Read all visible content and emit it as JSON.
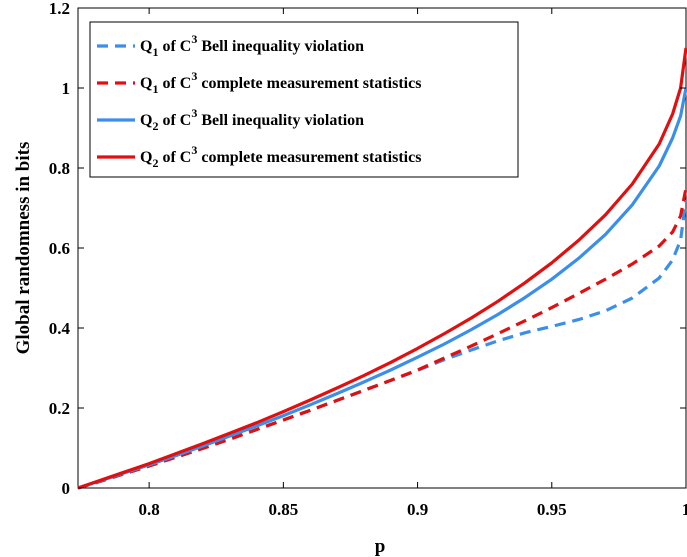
{
  "chart_data": {
    "type": "line",
    "xlabel": "p",
    "ylabel": "Global randomness in bits",
    "xlim": [
      0.7735,
      1.0
    ],
    "ylim": [
      0,
      1.2
    ],
    "x_ticks": [
      0.8,
      0.85,
      0.9,
      0.95,
      1
    ],
    "x_tick_labels": [
      "0.8",
      "0.85",
      "0.9",
      "0.95",
      "1"
    ],
    "y_ticks": [
      0,
      0.2,
      0.4,
      0.6,
      0.8,
      1,
      1.2
    ],
    "y_tick_labels": [
      "0",
      "0.2",
      "0.4",
      "0.6",
      "0.8",
      "1",
      "1.2"
    ],
    "grid": false,
    "legend_position": "top-left",
    "series": [
      {
        "name": "Q1 of C3 Bell inequality violation",
        "legend": {
          "q": "Q",
          "q_sub": "1",
          "mid": " of C",
          "sup": "3",
          "rest": " Bell inequality violation"
        },
        "color": "#3b8fe8",
        "style": "dashed",
        "x": [
          0.7735,
          0.78,
          0.79,
          0.8,
          0.81,
          0.82,
          0.83,
          0.84,
          0.85,
          0.86,
          0.87,
          0.88,
          0.89,
          0.9,
          0.91,
          0.92,
          0.93,
          0.94,
          0.95,
          0.96,
          0.97,
          0.98,
          0.99,
          0.995,
          0.998,
          1.0
        ],
        "y": [
          0,
          0.013,
          0.034,
          0.055,
          0.077,
          0.099,
          0.122,
          0.146,
          0.17,
          0.194,
          0.219,
          0.244,
          0.269,
          0.294,
          0.321,
          0.345,
          0.368,
          0.388,
          0.404,
          0.421,
          0.443,
          0.475,
          0.525,
          0.57,
          0.62,
          0.72
        ]
      },
      {
        "name": "Q1 of C3 complete measurement statistics",
        "legend": {
          "q": "Q",
          "q_sub": "1",
          "mid": " of  C",
          "sup": "3",
          "rest": " complete measurement statistics"
        },
        "color": "#e01010",
        "style": "dashed",
        "x": [
          0.7735,
          0.78,
          0.79,
          0.8,
          0.81,
          0.82,
          0.83,
          0.84,
          0.85,
          0.86,
          0.87,
          0.88,
          0.89,
          0.9,
          0.91,
          0.92,
          0.93,
          0.94,
          0.95,
          0.96,
          0.97,
          0.98,
          0.99,
          0.995,
          0.998,
          1.0
        ],
        "y": [
          0,
          0.013,
          0.034,
          0.055,
          0.077,
          0.099,
          0.122,
          0.146,
          0.17,
          0.194,
          0.219,
          0.244,
          0.269,
          0.295,
          0.325,
          0.355,
          0.386,
          0.418,
          0.451,
          0.486,
          0.522,
          0.56,
          0.605,
          0.64,
          0.68,
          0.75
        ]
      },
      {
        "name": "Q2 of C3 Bell inequality violation",
        "legend": {
          "q": "Q",
          "q_sub": "2",
          "mid": " of C",
          "sup": "3",
          "rest": " Bell inequality violation"
        },
        "color": "#3b8fe8",
        "style": "solid",
        "x": [
          0.7735,
          0.78,
          0.79,
          0.8,
          0.81,
          0.82,
          0.83,
          0.84,
          0.85,
          0.86,
          0.87,
          0.88,
          0.89,
          0.9,
          0.91,
          0.92,
          0.93,
          0.94,
          0.95,
          0.96,
          0.97,
          0.98,
          0.99,
          0.995,
          0.998,
          1.0
        ],
        "y": [
          0,
          0.014,
          0.036,
          0.058,
          0.081,
          0.105,
          0.13,
          0.155,
          0.181,
          0.208,
          0.236,
          0.265,
          0.295,
          0.327,
          0.36,
          0.396,
          0.434,
          0.476,
          0.522,
          0.574,
          0.634,
          0.708,
          0.805,
          0.875,
          0.93,
          1.0
        ]
      },
      {
        "name": "Q2 of C3 complete measurement statistics",
        "legend": {
          "q": "Q",
          "q_sub": "2",
          "mid": " of  C",
          "sup": "3",
          "rest": " complete measurement statistics"
        },
        "color": "#e01010",
        "style": "solid",
        "x": [
          0.7735,
          0.78,
          0.79,
          0.8,
          0.81,
          0.82,
          0.83,
          0.84,
          0.85,
          0.86,
          0.87,
          0.88,
          0.89,
          0.9,
          0.91,
          0.92,
          0.93,
          0.94,
          0.95,
          0.96,
          0.97,
          0.98,
          0.99,
          0.995,
          0.998,
          1.0
        ],
        "y": [
          0,
          0.015,
          0.038,
          0.061,
          0.086,
          0.111,
          0.137,
          0.163,
          0.191,
          0.22,
          0.25,
          0.281,
          0.314,
          0.349,
          0.386,
          0.425,
          0.467,
          0.513,
          0.563,
          0.619,
          0.683,
          0.76,
          0.86,
          0.935,
          1.0,
          1.1
        ]
      }
    ]
  }
}
